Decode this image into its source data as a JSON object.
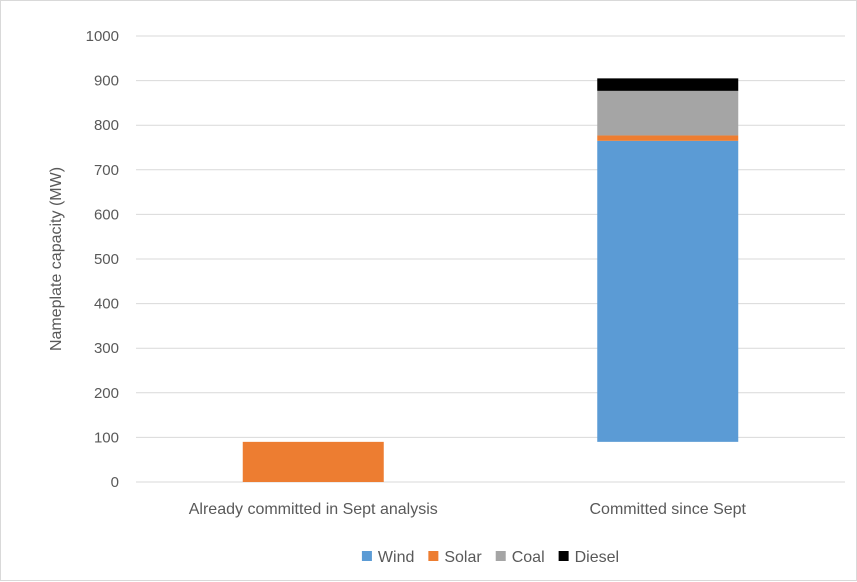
{
  "chart_data": {
    "type": "bar",
    "stacked": true,
    "title": "",
    "xlabel": "",
    "ylabel": "Nameplate capacity (MW)",
    "ylim": [
      0,
      1000
    ],
    "yticks": [
      0,
      100,
      200,
      300,
      400,
      500,
      600,
      700,
      800,
      900,
      1000
    ],
    "grid": true,
    "legend_position": "bottom",
    "categories": [
      "Already committed in Sept analysis",
      "Committed since Sept"
    ],
    "base_offsets": [
      0,
      90
    ],
    "series": [
      {
        "name": "Wind",
        "color": "#5b9bd5",
        "values": [
          0,
          675
        ]
      },
      {
        "name": "Solar",
        "color": "#ed7d31",
        "values": [
          90,
          12
        ]
      },
      {
        "name": "Coal",
        "color": "#a5a5a5",
        "values": [
          0,
          100
        ]
      },
      {
        "name": "Diesel",
        "color": "#000000",
        "values": [
          0,
          28
        ]
      }
    ]
  }
}
